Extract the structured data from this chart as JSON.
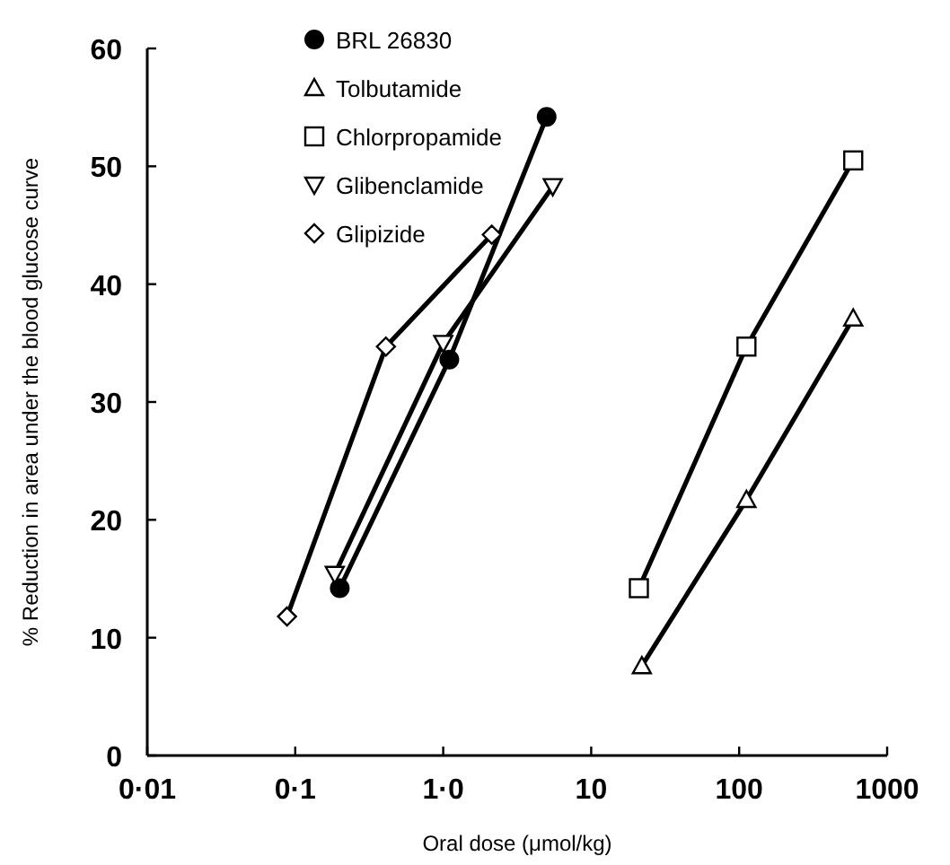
{
  "chart_data": {
    "type": "line",
    "xlabel": "Oral dose  (μmol/kg)",
    "ylabel": "% Reduction in area under the blood glucose curve",
    "log": "x",
    "xlim": [
      0.01,
      1000
    ],
    "ylim": [
      0,
      60
    ],
    "xticks": [
      {
        "value": 0.01,
        "label": "0·01"
      },
      {
        "value": 0.1,
        "label": "0·1"
      },
      {
        "value": 1,
        "label": "1·0"
      },
      10,
      100,
      1000
    ],
    "yticks": [
      0,
      10,
      20,
      30,
      40,
      50,
      60
    ],
    "grid": false,
    "legend": "top",
    "series": [
      {
        "name": "BRL 26830",
        "color": "#000000",
        "marker": "circle",
        "x": [
          0.2,
          1.1,
          5
        ],
        "values": [
          14.2,
          33.6,
          54.2
        ]
      },
      {
        "name": "Tolbutamide",
        "color": "#000000",
        "marker": "triangle",
        "x": [
          22,
          112,
          590
        ],
        "values": [
          7.6,
          21.7,
          37.1
        ]
      },
      {
        "name": "Chlorpropamide",
        "color": "#000000",
        "marker": "square",
        "x": [
          21,
          112,
          590
        ],
        "values": [
          14.2,
          34.7,
          50.5
        ]
      },
      {
        "name": "Glibenclamide",
        "color": "#000000",
        "marker": "triangle-down",
        "x": [
          0.185,
          1.0,
          5.5
        ],
        "values": [
          15.4,
          35.0,
          48.3
        ]
      },
      {
        "name": "Glipizide",
        "color": "#000000",
        "marker": "diamond",
        "x": [
          0.088,
          0.41,
          2.13
        ],
        "values": [
          11.8,
          34.7,
          44.2
        ]
      }
    ]
  }
}
